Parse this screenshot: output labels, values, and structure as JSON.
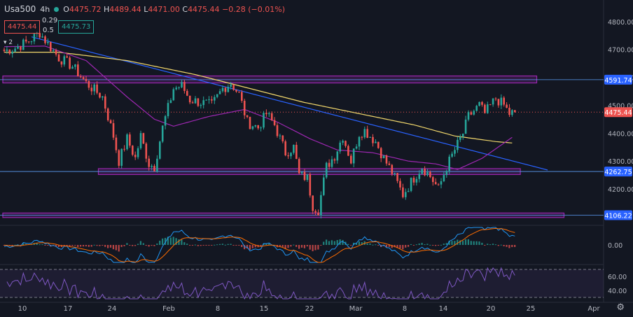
{
  "header": {
    "symbol": "Usa500",
    "interval": "4h",
    "ohlc": {
      "o_label": "O",
      "o": "4475.72",
      "h_label": "H",
      "h": "4489.44",
      "l_label": "L",
      "l": "4471.00",
      "c_label": "C",
      "c": "4475.44",
      "change": "−0.28 (−0.01%)"
    },
    "sell_price": "4475.44",
    "spread_top": "0.29",
    "spread_bottom": "0.5",
    "buy_price": "4475.73",
    "indicator_count": "2"
  },
  "colors": {
    "background": "#131722",
    "up": "#26a69a",
    "down": "#ef5350",
    "zone": "#9c27b0",
    "trendline": "#2962ff",
    "ma_slow": "#f0d66b",
    "ma_fast": "#9c27b0",
    "macd": "#2196f3",
    "signal": "#ff6d00",
    "rsi": "#7e57c2"
  },
  "chart_data": [
    {
      "type": "candlestick",
      "panel": "price",
      "y_ticks": [
        4200,
        4300,
        4400,
        4500,
        4600,
        4700,
        4800
      ],
      "y_tick_labels": [
        "4200.00",
        "4300.00",
        "4400.00",
        "4500.00",
        "4600.00",
        "4700.00",
        "4800.00"
      ],
      "ylim": [
        4095,
        4832
      ],
      "x_tick_labels": [
        "10",
        "17",
        "24",
        "Feb",
        "8",
        "15",
        "22",
        "Mar",
        "8",
        "14",
        "20",
        "25",
        "Apr"
      ],
      "price_labels": [
        {
          "value": 4591.74,
          "text": "4591.74"
        },
        {
          "value": 4475.44,
          "text": "4475.44"
        },
        {
          "value": 4262.75,
          "text": "4262.75"
        },
        {
          "value": 4106.22,
          "text": "4106.22"
        }
      ],
      "zones": [
        {
          "from_index": 0,
          "to_index": 195,
          "low": 4580,
          "high": 4605
        },
        {
          "from_index": 35,
          "to_index": 189,
          "low": 4252,
          "high": 4273
        },
        {
          "from_index": 0,
          "to_index": 205,
          "low": 4098,
          "high": 4114
        }
      ],
      "trendline": {
        "start_index": 10,
        "start_value": 4745,
        "end_index": 199,
        "end_value": 4268
      },
      "waypoints": [
        [
          0,
          4695
        ],
        [
          4,
          4705
        ],
        [
          9,
          4730
        ],
        [
          13,
          4760
        ],
        [
          16,
          4720
        ],
        [
          20,
          4670
        ],
        [
          25,
          4640
        ],
        [
          30,
          4580
        ],
        [
          36,
          4530
        ],
        [
          40,
          4390
        ],
        [
          42,
          4300
        ],
        [
          45,
          4380
        ],
        [
          48,
          4310
        ],
        [
          50,
          4390
        ],
        [
          53,
          4290
        ],
        [
          55,
          4280
        ],
        [
          58,
          4420
        ],
        [
          62,
          4560
        ],
        [
          65,
          4570
        ],
        [
          68,
          4520
        ],
        [
          72,
          4510
        ],
        [
          76,
          4500
        ],
        [
          80,
          4560
        ],
        [
          83,
          4580
        ],
        [
          86,
          4540
        ],
        [
          89,
          4440
        ],
        [
          93,
          4420
        ],
        [
          96,
          4470
        ],
        [
          99,
          4430
        ],
        [
          103,
          4330
        ],
        [
          106,
          4350
        ],
        [
          108,
          4250
        ],
        [
          111,
          4240
        ],
        [
          113,
          4140
        ],
        [
          115,
          4125
        ],
        [
          118,
          4280
        ],
        [
          121,
          4320
        ],
        [
          124,
          4390
        ],
        [
          127,
          4300
        ],
        [
          130,
          4400
        ],
        [
          132,
          4410
        ],
        [
          136,
          4370
        ],
        [
          139,
          4310
        ],
        [
          142,
          4260
        ],
        [
          146,
          4180
        ],
        [
          150,
          4240
        ],
        [
          153,
          4280
        ],
        [
          156,
          4245
        ],
        [
          159,
          4200
        ],
        [
          162,
          4280
        ],
        [
          165,
          4340
        ],
        [
          168,
          4400
        ],
        [
          170,
          4460
        ],
        [
          174,
          4500
        ],
        [
          176,
          4470
        ],
        [
          180,
          4525
        ],
        [
          183,
          4500
        ],
        [
          185,
          4470
        ],
        [
          187,
          4475
        ]
      ],
      "ma_slow": [
        [
          0,
          4690
        ],
        [
          20,
          4690
        ],
        [
          45,
          4660
        ],
        [
          70,
          4610
        ],
        [
          90,
          4560
        ],
        [
          110,
          4510
        ],
        [
          130,
          4470
        ],
        [
          150,
          4430
        ],
        [
          165,
          4390
        ],
        [
          180,
          4370
        ],
        [
          186,
          4365
        ]
      ],
      "ma_fast": [
        [
          0,
          4710
        ],
        [
          15,
          4712
        ],
        [
          30,
          4660
        ],
        [
          45,
          4530
        ],
        [
          55,
          4450
        ],
        [
          62,
          4425
        ],
        [
          75,
          4460
        ],
        [
          88,
          4485
        ],
        [
          100,
          4440
        ],
        [
          112,
          4380
        ],
        [
          122,
          4340
        ],
        [
          135,
          4330
        ],
        [
          148,
          4300
        ],
        [
          158,
          4290
        ],
        [
          166,
          4270
        ],
        [
          175,
          4310
        ],
        [
          186,
          4385
        ]
      ]
    },
    {
      "type": "histogram_with_lines",
      "panel": "macd",
      "y_ticks": [
        0
      ],
      "y_tick_labels": [
        "0.00"
      ],
      "series": [
        {
          "name": "",
          "kind": "histogram"
        },
        {
          "name": "",
          "kind": "line"
        },
        {
          "name": "",
          "kind": "line"
        }
      ]
    },
    {
      "type": "line",
      "panel": "rsi",
      "y_ticks": [
        40,
        60
      ],
      "y_tick_labels": [
        "40.00",
        "60.00"
      ],
      "ylim": [
        25,
        75
      ],
      "bands": [
        70,
        30
      ]
    }
  ]
}
